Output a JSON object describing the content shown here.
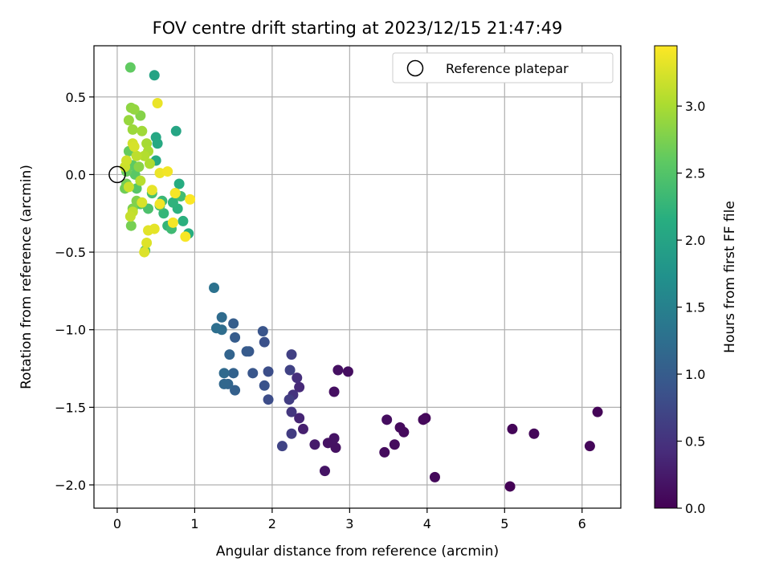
{
  "chart_data": {
    "type": "scatter",
    "title": "FOV centre drift starting at 2023/12/15 21:47:49",
    "xlabel": "Angular distance from reference (arcmin)",
    "ylabel": "Rotation from reference (arcmin)",
    "xlim": [
      -0.3,
      6.5
    ],
    "ylim": [
      -2.15,
      0.83
    ],
    "xticks": [
      0,
      1,
      2,
      3,
      4,
      5,
      6
    ],
    "xtick_labels": [
      "0",
      "1",
      "2",
      "3",
      "4",
      "5",
      "6"
    ],
    "yticks": [
      0.5,
      0.0,
      -0.5,
      -1.0,
      -1.5,
      -2.0
    ],
    "ytick_labels": [
      "0.5",
      "0.0",
      "−0.5",
      "−1.0",
      "−1.5",
      "−2.0"
    ],
    "grid": true,
    "colormap": "viridis",
    "colorbar": {
      "label": "Hours from first FF file",
      "range": [
        0,
        3.45
      ],
      "ticks": [
        0.0,
        0.5,
        1.0,
        1.5,
        2.0,
        2.5,
        3.0
      ],
      "tick_labels": [
        "0.0",
        "0.5",
        "1.0",
        "1.5",
        "2.0",
        "2.5",
        "3.0"
      ]
    },
    "legend": {
      "position": "top-right",
      "entries": [
        {
          "label": "Reference platepar",
          "marker": "open-circle"
        }
      ]
    },
    "reference_point": [
      0,
      0
    ],
    "series": [
      {
        "points": [
          [
            5.07,
            -2.01,
            0.02
          ],
          [
            6.2,
            -1.53,
            0.03
          ],
          [
            6.1,
            -1.75,
            0.05
          ],
          [
            5.1,
            -1.64,
            0.04
          ],
          [
            5.38,
            -1.67,
            0.06
          ],
          [
            4.1,
            -1.95,
            0.07
          ],
          [
            3.98,
            -1.57,
            0.05
          ],
          [
            3.95,
            -1.58,
            0.08
          ],
          [
            3.65,
            -1.63,
            0.1
          ],
          [
            3.7,
            -1.66,
            0.09
          ],
          [
            3.58,
            -1.74,
            0.11
          ],
          [
            3.48,
            -1.58,
            0.12
          ],
          [
            3.45,
            -1.79,
            0.1
          ],
          [
            2.98,
            -1.27,
            0.13
          ],
          [
            2.85,
            -1.26,
            0.15
          ],
          [
            2.8,
            -1.4,
            0.14
          ],
          [
            2.82,
            -1.76,
            0.16
          ],
          [
            2.8,
            -1.7,
            0.18
          ],
          [
            2.72,
            -1.73,
            0.17
          ],
          [
            2.68,
            -1.91,
            0.19
          ],
          [
            2.55,
            -1.74,
            0.25
          ],
          [
            2.4,
            -1.64,
            0.3
          ],
          [
            2.35,
            -1.57,
            0.35
          ],
          [
            2.35,
            -1.37,
            0.4
          ],
          [
            2.32,
            -1.31,
            0.45
          ],
          [
            2.27,
            -1.42,
            0.5
          ],
          [
            2.25,
            -1.53,
            0.55
          ],
          [
            2.25,
            -1.67,
            0.6
          ],
          [
            2.22,
            -1.45,
            0.62
          ],
          [
            2.25,
            -1.16,
            0.65
          ],
          [
            2.23,
            -1.26,
            0.68
          ],
          [
            2.13,
            -1.75,
            0.7
          ],
          [
            1.95,
            -1.45,
            0.8
          ],
          [
            1.95,
            -1.27,
            0.82
          ],
          [
            1.9,
            -1.08,
            0.85
          ],
          [
            1.9,
            -1.36,
            0.88
          ],
          [
            1.88,
            -1.01,
            0.9
          ],
          [
            1.75,
            -1.28,
            0.92
          ],
          [
            1.7,
            -1.14,
            0.95
          ],
          [
            1.67,
            -1.14,
            0.98
          ],
          [
            1.52,
            -1.05,
            1.0
          ],
          [
            1.5,
            -0.96,
            1.02
          ],
          [
            1.52,
            -1.39,
            1.05
          ],
          [
            1.5,
            -1.28,
            1.08
          ],
          [
            1.45,
            -1.16,
            1.1
          ],
          [
            1.43,
            -1.35,
            1.12
          ],
          [
            1.38,
            -1.35,
            1.15
          ],
          [
            1.38,
            -1.28,
            1.18
          ],
          [
            1.35,
            -0.92,
            1.2
          ],
          [
            1.35,
            -1.0,
            1.22
          ],
          [
            1.28,
            -0.99,
            1.25
          ],
          [
            1.25,
            -0.73,
            1.3
          ],
          [
            0.48,
            0.64,
            2.0
          ],
          [
            0.76,
            0.28,
            2.02
          ],
          [
            0.5,
            0.24,
            2.05
          ],
          [
            0.52,
            0.2,
            2.08
          ],
          [
            0.5,
            0.09,
            2.1
          ],
          [
            0.8,
            -0.06,
            2.12
          ],
          [
            0.92,
            -0.38,
            2.15
          ],
          [
            0.85,
            -0.3,
            2.18
          ],
          [
            0.78,
            -0.22,
            2.2
          ],
          [
            0.72,
            -0.18,
            2.22
          ],
          [
            0.65,
            -0.33,
            2.25
          ],
          [
            0.6,
            -0.25,
            2.28
          ],
          [
            0.58,
            -0.17,
            2.3
          ],
          [
            0.75,
            -0.12,
            2.32
          ],
          [
            0.7,
            -0.35,
            2.35
          ],
          [
            0.82,
            -0.14,
            2.38
          ],
          [
            0.55,
            -0.2,
            2.4
          ],
          [
            0.45,
            -0.12,
            2.42
          ],
          [
            0.4,
            -0.22,
            2.45
          ],
          [
            0.36,
            -0.49,
            2.48
          ],
          [
            0.3,
            -0.19,
            2.5
          ],
          [
            0.25,
            -0.09,
            2.52
          ],
          [
            0.23,
            0.0,
            2.55
          ],
          [
            0.2,
            0.06,
            2.58
          ],
          [
            0.17,
            0.69,
            2.6
          ],
          [
            0.15,
            0.15,
            2.62
          ],
          [
            0.12,
            0.02,
            2.65
          ],
          [
            0.1,
            -0.09,
            2.68
          ],
          [
            0.12,
            -0.06,
            2.7
          ],
          [
            0.18,
            -0.33,
            2.72
          ],
          [
            0.2,
            -0.22,
            2.75
          ],
          [
            0.25,
            -0.17,
            2.78
          ],
          [
            0.3,
            0.38,
            2.8
          ],
          [
            0.28,
            0.05,
            2.82
          ],
          [
            0.18,
            0.43,
            2.85
          ],
          [
            0.22,
            0.42,
            2.88
          ],
          [
            0.15,
            0.35,
            2.9
          ],
          [
            0.2,
            0.29,
            2.92
          ],
          [
            0.32,
            0.28,
            2.95
          ],
          [
            0.38,
            0.2,
            2.98
          ],
          [
            0.4,
            0.15,
            3.0
          ],
          [
            0.42,
            0.07,
            3.02
          ],
          [
            0.35,
            0.12,
            3.05
          ],
          [
            0.3,
            -0.04,
            3.08
          ],
          [
            0.25,
            0.12,
            3.1
          ],
          [
            0.2,
            -0.24,
            3.12
          ],
          [
            0.17,
            -0.27,
            3.15
          ],
          [
            0.15,
            -0.08,
            3.17
          ],
          [
            0.1,
            0.05,
            3.18
          ],
          [
            0.12,
            0.09,
            3.2
          ],
          [
            0.2,
            0.2,
            3.22
          ],
          [
            0.22,
            0.18,
            3.24
          ],
          [
            0.32,
            -0.18,
            3.25
          ],
          [
            0.35,
            -0.5,
            3.27
          ],
          [
            0.38,
            -0.44,
            3.28
          ],
          [
            0.4,
            -0.36,
            3.3
          ],
          [
            0.48,
            -0.35,
            3.32
          ],
          [
            0.45,
            -0.1,
            3.33
          ],
          [
            0.52,
            0.46,
            3.35
          ],
          [
            0.55,
            0.01,
            3.36
          ],
          [
            0.55,
            -0.19,
            3.38
          ],
          [
            0.65,
            0.02,
            3.39
          ],
          [
            0.72,
            -0.31,
            3.4
          ],
          [
            0.75,
            -0.12,
            3.41
          ],
          [
            0.88,
            -0.4,
            3.42
          ],
          [
            0.94,
            -0.16,
            3.44
          ]
        ]
      }
    ]
  }
}
